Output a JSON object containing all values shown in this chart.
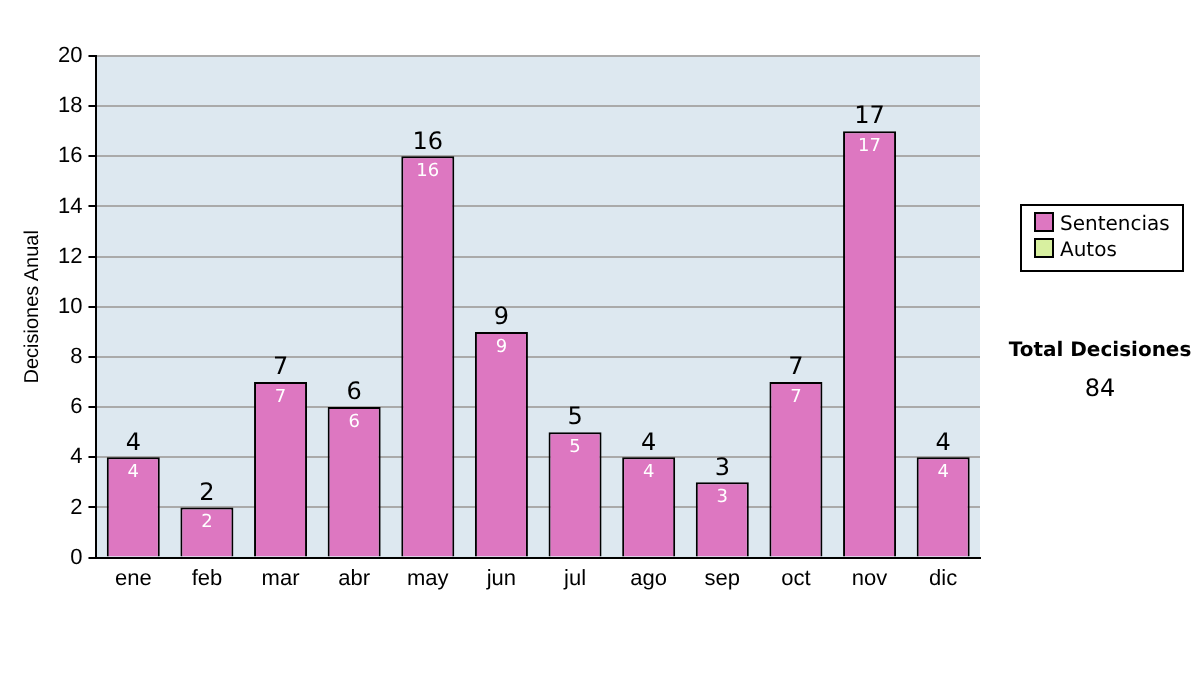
{
  "chart_data": {
    "type": "bar",
    "ylabel": "Decisiones Anual",
    "categories": [
      "ene",
      "feb",
      "mar",
      "abr",
      "may",
      "jun",
      "jul",
      "ago",
      "sep",
      "oct",
      "nov",
      "dic"
    ],
    "series": [
      {
        "name": "Sentencias",
        "color": "#dd77c1",
        "values": [
          4,
          2,
          7,
          6,
          16,
          9,
          5,
          4,
          3,
          7,
          17,
          4
        ]
      },
      {
        "name": "Autos",
        "color": "#d8f0a0",
        "values": [
          null,
          null,
          null,
          null,
          null,
          null,
          null,
          null,
          null,
          null,
          null,
          null
        ]
      }
    ],
    "stacked": true,
    "data_labels": true,
    "totals": [
      "4",
      "2",
      "7",
      "6",
      "16",
      "9",
      "5",
      "4",
      "3",
      "7",
      "17",
      "4"
    ],
    "ylim": [
      0,
      20
    ],
    "yticks": [
      0,
      2,
      4,
      6,
      8,
      10,
      12,
      14,
      16,
      18,
      20
    ],
    "grid": "y",
    "legend": "right",
    "annotations": [
      "Total Decisiones",
      "84"
    ]
  }
}
